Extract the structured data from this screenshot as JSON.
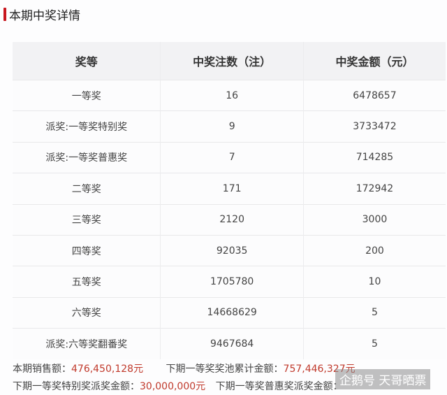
{
  "title": "本期中奖详情",
  "headers": [
    "奖等",
    "中奖注数（注）",
    "中奖金额（元）"
  ],
  "rows": [
    [
      "一等奖",
      "16",
      "6478657"
    ],
    [
      "派奖:一等奖特别奖",
      "9",
      "3733472"
    ],
    [
      "派奖:一等奖普惠奖",
      "7",
      "714285"
    ],
    [
      "二等奖",
      "171",
      "172942"
    ],
    [
      "三等奖",
      "2120",
      "3000"
    ],
    [
      "四等奖",
      "92035",
      "200"
    ],
    [
      "五等奖",
      "1705780",
      "10"
    ],
    [
      "六等奖",
      "14668629",
      "5"
    ],
    [
      "派奖:六等奖翻番奖",
      "9467684",
      "5"
    ]
  ],
  "footer": {
    "sales_label": "本期销售额：",
    "sales_value": "476,450,128元",
    "pool_label": "下期一等奖奖池累计金额：",
    "pool_value": "757,446,327元",
    "special_label": "下期一等奖特别奖派奖金额：",
    "special_value": "30,000,000元",
    "puhui_label": "下期一等奖普惠奖派奖金额："
  },
  "watermark": "企鹅号 天哥晒票",
  "colors": {
    "accent": "#c8161e",
    "value": "#c0392b"
  }
}
